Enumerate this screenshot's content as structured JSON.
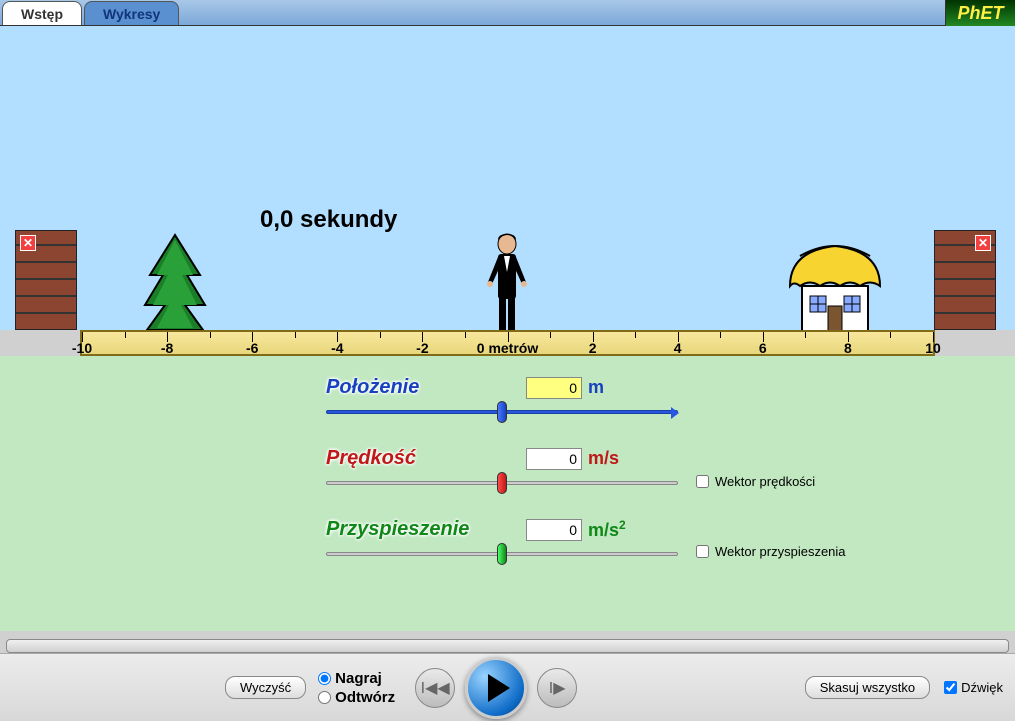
{
  "tabs": {
    "intro": "Wstęp",
    "charts": "Wykresy"
  },
  "phet": "PhET",
  "time_readout": "0,0 sekundy",
  "ruler": {
    "min": -10,
    "max": 10,
    "step": 2,
    "center_label": "0 metrów",
    "labels": [
      "-10",
      "-8",
      "-6",
      "-4",
      "-2",
      "",
      "2",
      "4",
      "6",
      "8",
      "10"
    ],
    "bg_color": "#f0e090",
    "border_color": "#806c18"
  },
  "controls": {
    "position": {
      "label": "Położenie",
      "value": "0",
      "unit": "m",
      "color": "#1840c0",
      "thumb_pct": 50,
      "highlight": true
    },
    "velocity": {
      "label": "Prędkość",
      "value": "0",
      "unit": "m/s",
      "color": "#c01818",
      "thumb_pct": 50,
      "vector_label": "Wektor prędkości",
      "vector_checked": false
    },
    "accel": {
      "label": "Przyspieszenie",
      "value": "0",
      "unit": "m/s²",
      "color": "#108818",
      "thumb_pct": 50,
      "vector_label": "Wektor przyspieszenia",
      "vector_checked": false
    }
  },
  "playback": {
    "clear": "Wyczyść",
    "record": "Nagraj",
    "play_label": "Odtwórz",
    "mode": "record",
    "clear_all": "Skasuj wszystko",
    "sound": "Dźwięk",
    "sound_checked": true
  },
  "colors": {
    "sky": "#b2deff",
    "ground": "#c2e8c2",
    "wall": "#8b4530"
  }
}
